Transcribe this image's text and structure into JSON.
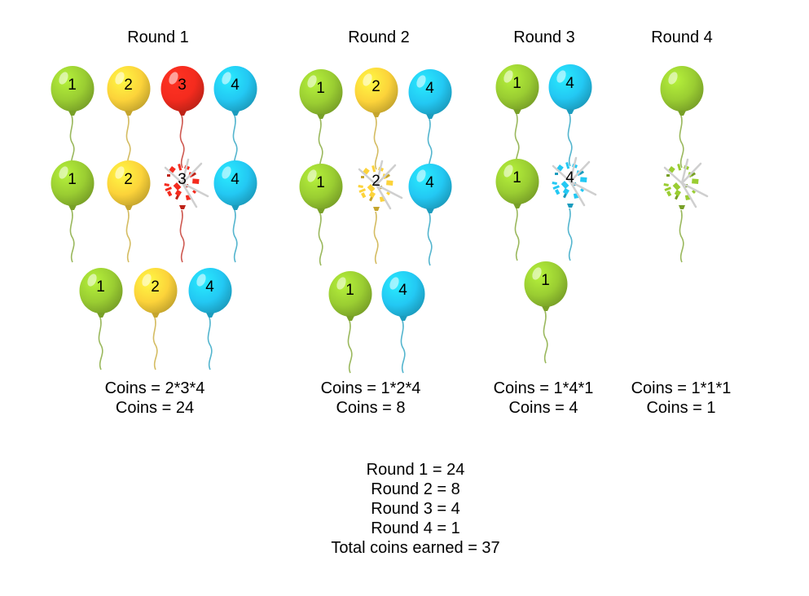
{
  "rounds": [
    {
      "title": "Round 1",
      "formula": "Coins = 2*3*4",
      "result": "Coins = 24"
    },
    {
      "title": "Round 2",
      "formula": "Coins = 1*2*4",
      "result": "Coins = 8"
    },
    {
      "title": "Round 3",
      "formula": "Coins = 1*4*1",
      "result": "Coins = 4"
    },
    {
      "title": "Round 4",
      "formula": "Coins = 1*1*1",
      "result": "Coins = 1"
    }
  ],
  "balloon_labels": [
    "1",
    "2",
    "3",
    "4"
  ],
  "colors": {
    "green": "#9acd32",
    "yellow": "#fcd33a",
    "red": "#f42b1e",
    "blue": "#23c8f3"
  },
  "summary": {
    "lines": [
      "Round 1 = 24",
      "Round 2 = 8",
      "Round 3 = 4",
      "Round 4 = 1"
    ],
    "total": "Total coins earned = 37"
  }
}
